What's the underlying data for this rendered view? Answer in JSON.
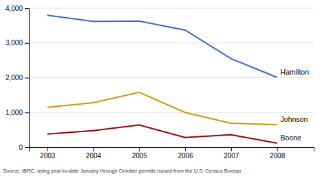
{
  "chart_data": {
    "type": "line",
    "x": [
      2003,
      2004,
      2005,
      2006,
      2007,
      2008
    ],
    "xlim": [
      2002.6,
      2008.8
    ],
    "xticks": [
      2003,
      2004,
      2005,
      2006,
      2007,
      2008
    ],
    "ylim": [
      0,
      4000
    ],
    "yticks": [
      0,
      {
        "value": 1000,
        "label": "1,000"
      },
      {
        "value": 2000,
        "label": "2,000"
      },
      {
        "value": 3000,
        "label": "3,000"
      },
      {
        "value": 4000,
        "label": "4,000"
      }
    ],
    "grid": true,
    "series": [
      {
        "name": "Hamilton",
        "color": "#3366cc",
        "values": [
          3800,
          3620,
          3630,
          3370,
          2550,
          2010
        ]
      },
      {
        "name": "Johnson",
        "color": "#cc9900",
        "values": [
          1150,
          1280,
          1580,
          1000,
          690,
          650
        ]
      },
      {
        "name": "Boone",
        "color": "#990000",
        "values": [
          380,
          480,
          640,
          280,
          360,
          120
        ]
      }
    ],
    "annotations": [
      "Source: IBRC, using year-to-date January through October permits issued from the U.S. Census Bureau"
    ]
  }
}
